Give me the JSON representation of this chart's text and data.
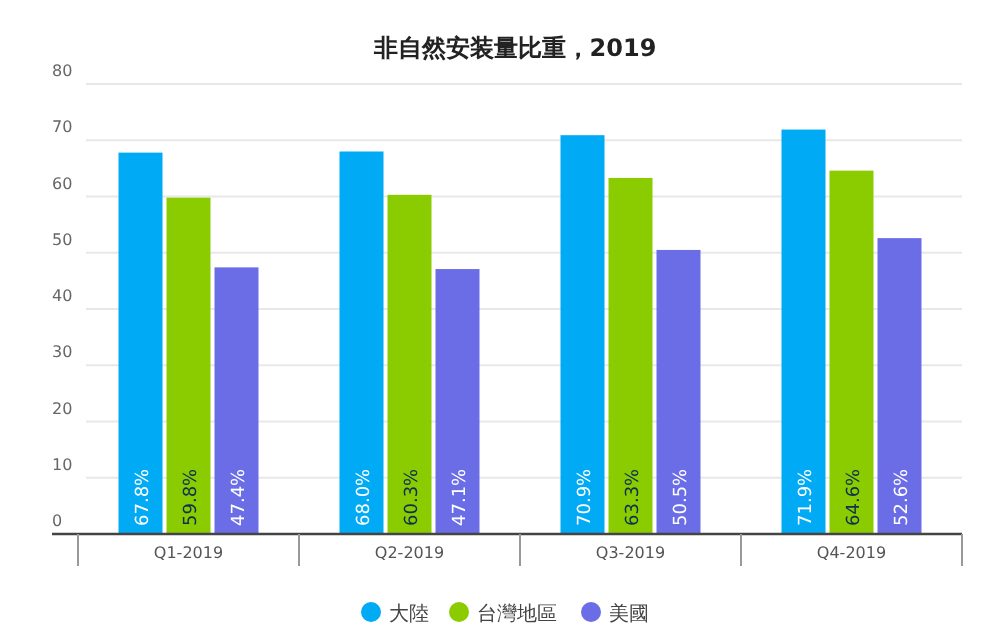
{
  "chart_data": {
    "type": "bar",
    "title": "非自然安装量比重，2019",
    "categories": [
      "Q1-2019",
      "Q2-2019",
      "Q3-2019",
      "Q4-2019"
    ],
    "series": [
      {
        "name": "大陸",
        "color": "#00aaf5",
        "values": [
          67.8,
          68.0,
          70.9,
          71.9
        ],
        "value_labels": [
          "67.8%",
          "68.0%",
          "70.9%",
          "71.9%"
        ]
      },
      {
        "name": "台灣地區",
        "color": "#8acc00",
        "values": [
          59.8,
          60.3,
          63.3,
          64.6
        ],
        "value_labels": [
          "59.8%",
          "60.3%",
          "63.3%",
          "64.6%"
        ]
      },
      {
        "name": "美國",
        "color": "#6b6de6",
        "values": [
          47.4,
          47.1,
          50.5,
          52.6
        ],
        "value_labels": [
          "47.4%",
          "47.1%",
          "50.5%",
          "52.6%"
        ]
      }
    ],
    "ylim": [
      0,
      80
    ],
    "yticks": [
      0,
      10,
      20,
      30,
      40,
      50,
      60,
      70,
      80
    ],
    "grid": "y",
    "legend": "bottom"
  }
}
